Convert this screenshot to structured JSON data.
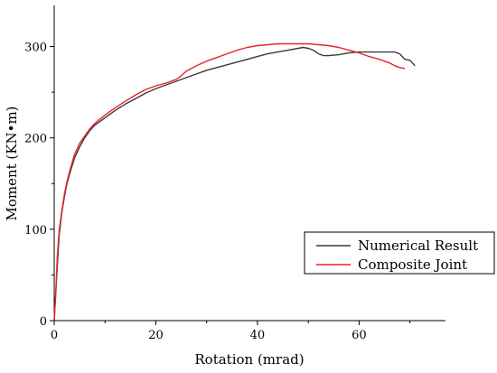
{
  "chart_data": {
    "type": "line",
    "title": "",
    "xlabel": "Rotation (mrad)",
    "ylabel": "Moment (KN•m)",
    "xlim": [
      0,
      77
    ],
    "ylim": [
      0,
      345
    ],
    "xticks": [
      0,
      20,
      40,
      60
    ],
    "yticks": [
      0,
      100,
      200,
      300
    ],
    "grid": false,
    "legend_position": "bottom-right",
    "series": [
      {
        "name": "Numerical Result",
        "color": "#3a3a3a",
        "points": [
          [
            0,
            0
          ],
          [
            0.3,
            30
          ],
          [
            0.6,
            60
          ],
          [
            1,
            95
          ],
          [
            1.5,
            118
          ],
          [
            2,
            135
          ],
          [
            2.5,
            150
          ],
          [
            3,
            160
          ],
          [
            4,
            178
          ],
          [
            5,
            190
          ],
          [
            6,
            200
          ],
          [
            7,
            208
          ],
          [
            8,
            214
          ],
          [
            10,
            222
          ],
          [
            12,
            230
          ],
          [
            14,
            237
          ],
          [
            16,
            243
          ],
          [
            18,
            249
          ],
          [
            20,
            254
          ],
          [
            22,
            258
          ],
          [
            24,
            262
          ],
          [
            26,
            266
          ],
          [
            28,
            270
          ],
          [
            30,
            274
          ],
          [
            32,
            277
          ],
          [
            34,
            280
          ],
          [
            36,
            283
          ],
          [
            38,
            286
          ],
          [
            40,
            289
          ],
          [
            42,
            292
          ],
          [
            44,
            294
          ],
          [
            46,
            296
          ],
          [
            48,
            298
          ],
          [
            49,
            299
          ],
          [
            50,
            298
          ],
          [
            51,
            296
          ],
          [
            52,
            292
          ],
          [
            53,
            290
          ],
          [
            54,
            290
          ],
          [
            56,
            291
          ],
          [
            58,
            293
          ],
          [
            60,
            294
          ],
          [
            62,
            294
          ],
          [
            64,
            294
          ],
          [
            66,
            294
          ],
          [
            67,
            294
          ],
          [
            68,
            292
          ],
          [
            69,
            286
          ],
          [
            70,
            285
          ],
          [
            70.5,
            282
          ],
          [
            71,
            279
          ]
        ]
      },
      {
        "name": "Composite Joint",
        "color": "#e8232a",
        "points": [
          [
            0,
            0
          ],
          [
            0.3,
            30
          ],
          [
            0.6,
            70
          ],
          [
            1,
            100
          ],
          [
            1.5,
            120
          ],
          [
            2,
            138
          ],
          [
            2.5,
            152
          ],
          [
            3,
            163
          ],
          [
            4,
            182
          ],
          [
            5,
            194
          ],
          [
            6,
            202
          ],
          [
            7,
            210
          ],
          [
            8,
            216
          ],
          [
            10,
            225
          ],
          [
            12,
            233
          ],
          [
            14,
            240
          ],
          [
            16,
            247
          ],
          [
            18,
            253
          ],
          [
            20,
            257
          ],
          [
            22,
            260
          ],
          [
            24,
            264
          ],
          [
            25,
            268
          ],
          [
            26,
            273
          ],
          [
            28,
            279
          ],
          [
            30,
            284
          ],
          [
            32,
            288
          ],
          [
            34,
            292
          ],
          [
            36,
            296
          ],
          [
            38,
            299
          ],
          [
            40,
            301
          ],
          [
            42,
            302
          ],
          [
            44,
            303
          ],
          [
            46,
            303
          ],
          [
            48,
            303
          ],
          [
            50,
            303
          ],
          [
            52,
            302
          ],
          [
            54,
            301
          ],
          [
            56,
            299
          ],
          [
            58,
            296
          ],
          [
            60,
            293
          ],
          [
            62,
            289
          ],
          [
            64,
            286
          ],
          [
            66,
            282
          ],
          [
            67,
            279
          ],
          [
            68,
            277
          ],
          [
            69,
            276
          ]
        ]
      }
    ]
  }
}
